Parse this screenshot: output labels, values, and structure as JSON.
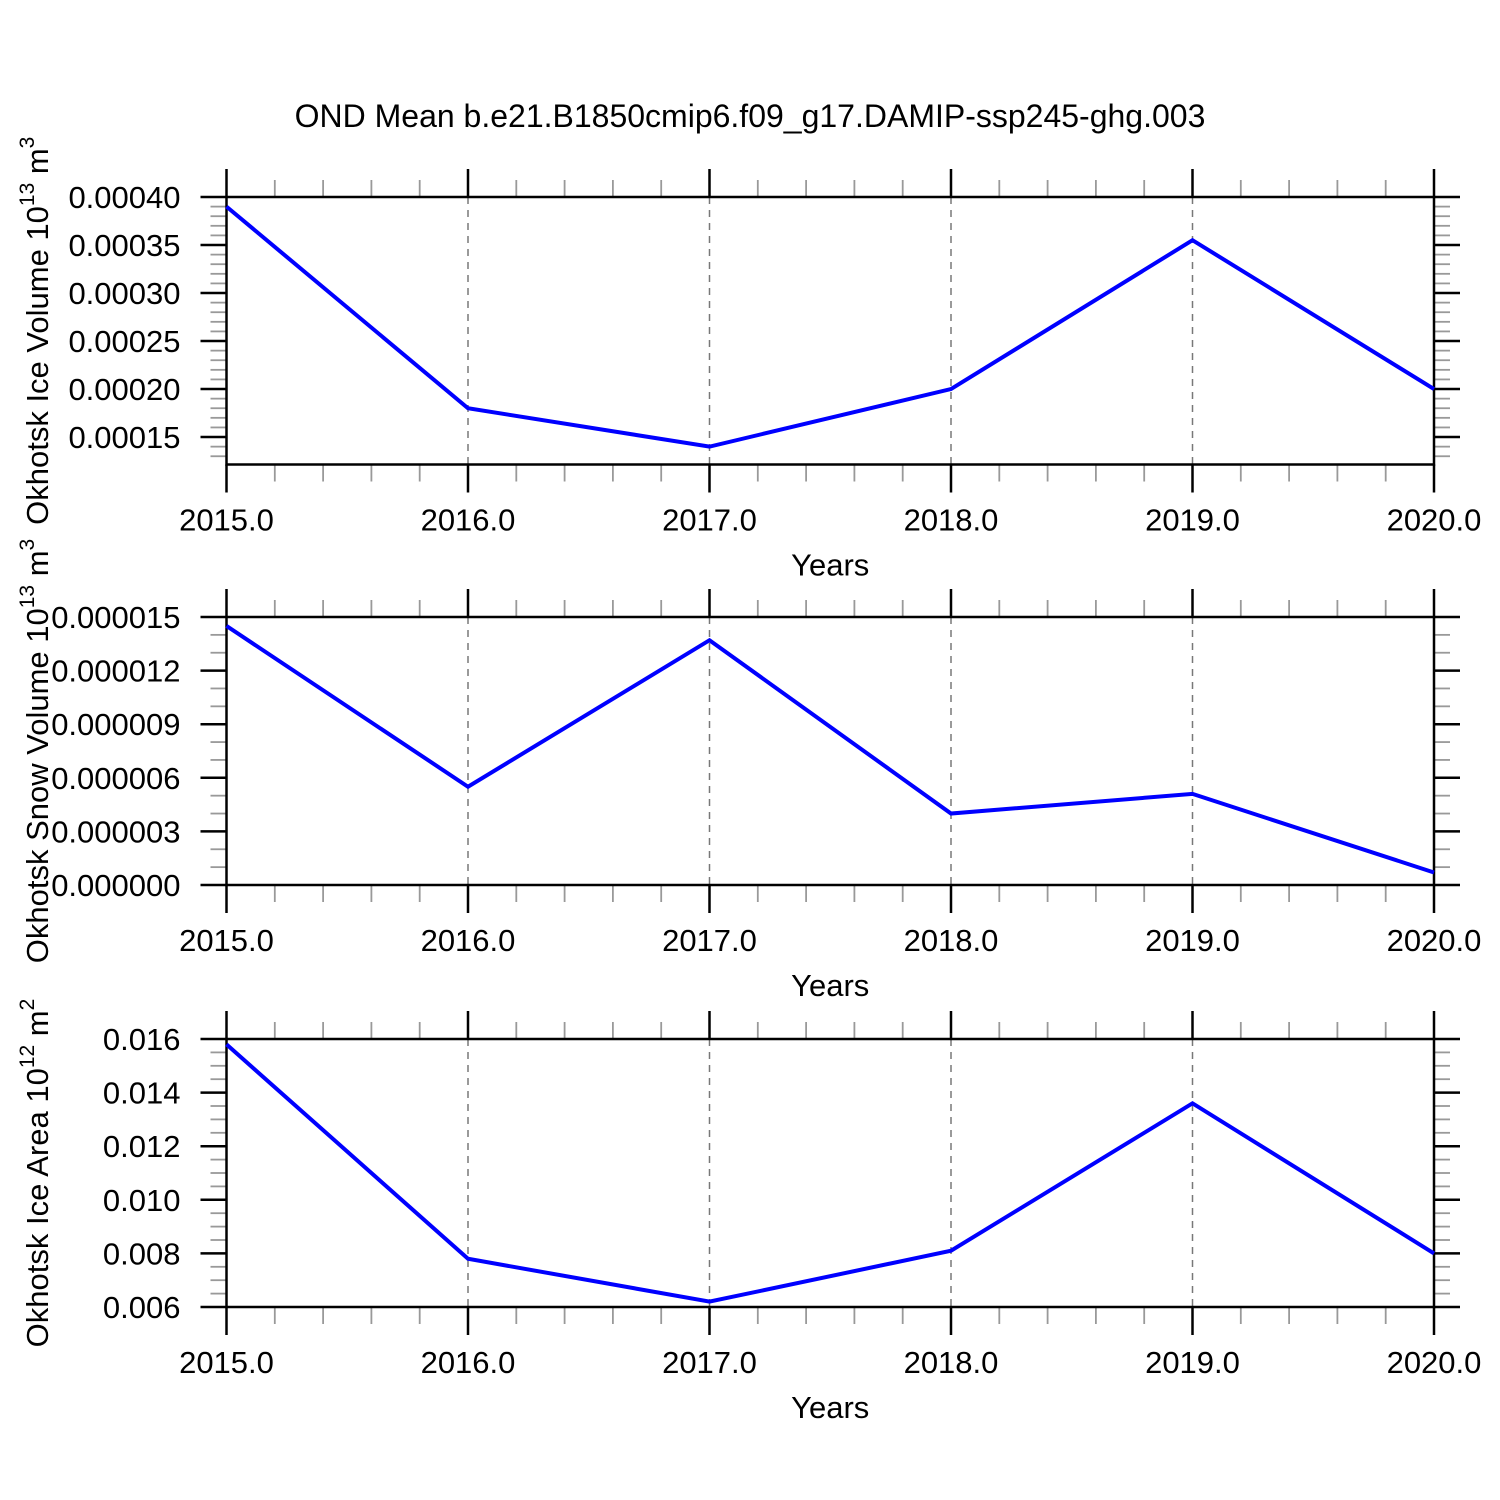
{
  "title": "OND Mean b.e21.B1850cmip6.f09_g17.DAMIP-ssp245-ghg.003",
  "colors": {
    "line": "#0000ff",
    "grid": "#787878",
    "axis": "#000000",
    "minor_tick": "#999999"
  },
  "chart_data": [
    {
      "type": "line",
      "title": "OND Mean b.e21.B1850cmip6.f09_g17.DAMIP-ssp245-ghg.003",
      "xlabel": "Years",
      "ylabel": "Okhotsk Ice Volume 10^13 m^3",
      "x": [
        2015,
        2016,
        2017,
        2018,
        2019,
        2020
      ],
      "values": [
        0.00039,
        0.00018,
        0.00014,
        0.0002,
        0.000355,
        0.0002
      ],
      "xlim": [
        2015,
        2020
      ],
      "ylim": [
        0.0001214,
        0.0004
      ],
      "xtick_values": [
        2015,
        2016,
        2017,
        2018,
        2019,
        2020
      ],
      "xtick_labels": [
        "2015.0",
        "2016.0",
        "2017.0",
        "2018.0",
        "2019.0",
        "2020.0"
      ],
      "x_minor_step": 0.2,
      "ytick_values": [
        0.00015,
        0.0002,
        0.00025,
        0.0003,
        0.00035,
        0.0004
      ],
      "ytick_labels": [
        "0.00015",
        "0.00020",
        "0.00025",
        "0.00030",
        "0.00035",
        "0.00040"
      ],
      "y_minor_step": 1e-05,
      "gridline_x": [
        2016,
        2017,
        2018,
        2019
      ],
      "grid": "vertical-dashed",
      "legend": "none"
    },
    {
      "type": "line",
      "title": "",
      "xlabel": "Years",
      "ylabel": "Okhotsk Snow Volume 10^13 m^3",
      "x": [
        2015,
        2016,
        2017,
        2018,
        2019,
        2020
      ],
      "values": [
        1.45e-05,
        5.5e-06,
        1.37e-05,
        4e-06,
        5.1e-06,
        7e-07
      ],
      "xlim": [
        2015,
        2020
      ],
      "ylim": [
        0,
        1.5e-05
      ],
      "xtick_values": [
        2015,
        2016,
        2017,
        2018,
        2019,
        2020
      ],
      "xtick_labels": [
        "2015.0",
        "2016.0",
        "2017.0",
        "2018.0",
        "2019.0",
        "2020.0"
      ],
      "x_minor_step": 0.2,
      "ytick_values": [
        0,
        3e-06,
        6e-06,
        9e-06,
        1.2e-05,
        1.5e-05
      ],
      "ytick_labels": [
        "0.000000",
        "0.000003",
        "0.000006",
        "0.000009",
        "0.000012",
        "0.000015"
      ],
      "y_minor_step": 1e-06,
      "gridline_x": [
        2016,
        2017,
        2018,
        2019
      ],
      "grid": "vertical-dashed",
      "legend": "none"
    },
    {
      "type": "line",
      "title": "",
      "xlabel": "Years",
      "ylabel": "Okhotsk Ice Area 10^12 m^2",
      "x": [
        2015,
        2016,
        2017,
        2018,
        2019,
        2020
      ],
      "values": [
        0.0158,
        0.0078,
        0.0062,
        0.0081,
        0.0136,
        0.008
      ],
      "xlim": [
        2015,
        2020
      ],
      "ylim": [
        0.006,
        0.016
      ],
      "xtick_values": [
        2015,
        2016,
        2017,
        2018,
        2019,
        2020
      ],
      "xtick_labels": [
        "2015.0",
        "2016.0",
        "2017.0",
        "2018.0",
        "2019.0",
        "2020.0"
      ],
      "x_minor_step": 0.2,
      "ytick_values": [
        0.006,
        0.008,
        0.01,
        0.012,
        0.014,
        0.016
      ],
      "ytick_labels": [
        "0.006",
        "0.008",
        "0.010",
        "0.012",
        "0.014",
        "0.016"
      ],
      "y_minor_step": 0.0005,
      "gridline_x": [
        2016,
        2017,
        2018,
        2019
      ],
      "grid": "vertical-dashed",
      "legend": "none"
    }
  ]
}
